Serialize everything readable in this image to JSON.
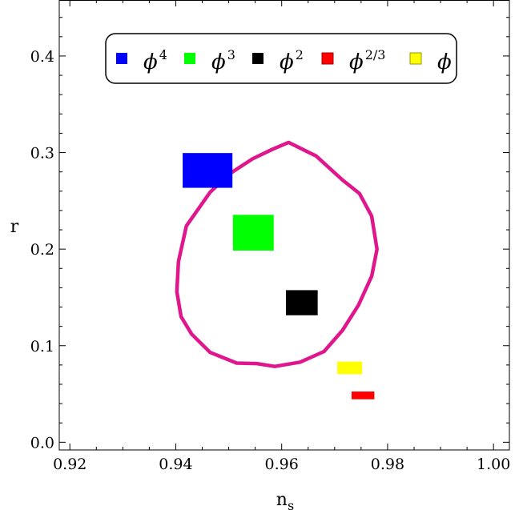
{
  "chart_data": {
    "type": "scatter",
    "xlabel": "n",
    "xlabel_sub": "s",
    "ylabel": "r",
    "xlim": [
      0.918,
      1.003
    ],
    "ylim": [
      -0.008,
      0.458
    ],
    "x_ticks": [
      0.92,
      0.94,
      0.96,
      0.98,
      1.0
    ],
    "x_tick_labels": [
      "0.92",
      "0.94",
      "0.96",
      "0.98",
      "1.00"
    ],
    "y_ticks": [
      0.0,
      0.1,
      0.2,
      0.3,
      0.4
    ],
    "y_tick_labels": [
      "0.0",
      "0.1",
      "0.2",
      "0.3",
      "0.4"
    ],
    "legend_position": "top",
    "series": [
      {
        "name": "ϕ",
        "sup": "4",
        "color": "#0000ff",
        "x": [
          0.9413,
          0.9507
        ],
        "y": [
          0.2635,
          0.2995
        ]
      },
      {
        "name": "ϕ",
        "sup": "3",
        "color": "#00ff00",
        "x": [
          0.9508,
          0.9585
        ],
        "y": [
          0.1985,
          0.2355
        ]
      },
      {
        "name": "ϕ",
        "sup": "2",
        "color": "#000000",
        "x": [
          0.9608,
          0.9668
        ],
        "y": [
          0.1315,
          0.1575
        ]
      },
      {
        "name": "ϕ",
        "sup": "2/3",
        "color": "#ff0000",
        "x": [
          0.9732,
          0.9775
        ],
        "y": [
          0.0445,
          0.0525
        ]
      },
      {
        "name": "ϕ",
        "sup": "",
        "color": "#ffff00",
        "x": [
          0.9705,
          0.9752
        ],
        "y": [
          0.0705,
          0.0835
        ]
      }
    ],
    "contour": {
      "color": "#e0168c",
      "points": [
        [
          0.9613,
          0.3105
        ],
        [
          0.9665,
          0.2965
        ],
        [
          0.9715,
          0.2715
        ],
        [
          0.9747,
          0.2575
        ],
        [
          0.977,
          0.234
        ],
        [
          0.978,
          0.2
        ],
        [
          0.977,
          0.172
        ],
        [
          0.9745,
          0.142
        ],
        [
          0.9715,
          0.116
        ],
        [
          0.968,
          0.094
        ],
        [
          0.9635,
          0.083
        ],
        [
          0.9587,
          0.0785
        ],
        [
          0.9553,
          0.0815
        ],
        [
          0.9515,
          0.082
        ],
        [
          0.9465,
          0.093
        ],
        [
          0.943,
          0.112
        ],
        [
          0.941,
          0.13
        ],
        [
          0.9402,
          0.156
        ],
        [
          0.9405,
          0.187
        ],
        [
          0.942,
          0.224
        ],
        [
          0.9465,
          0.259
        ],
        [
          0.9503,
          0.2785
        ],
        [
          0.9545,
          0.2935
        ],
        [
          0.9583,
          0.3035
        ]
      ]
    }
  }
}
